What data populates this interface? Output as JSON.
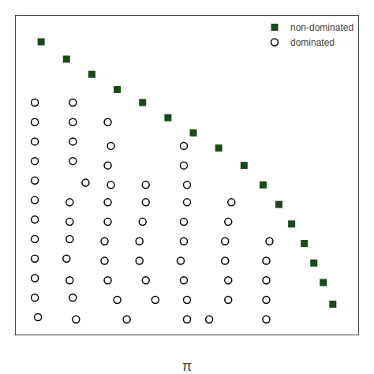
{
  "chart_data": {
    "type": "scatter",
    "xlabel": "π",
    "xlim": [
      -0.3,
      10.5
    ],
    "ylim": [
      0.3,
      15.0
    ],
    "xticks": [],
    "yticks": [],
    "tick_labels": false,
    "grid": false,
    "legend": "upper right",
    "series": [
      {
        "name": "non-dominated",
        "color": "#1a4a1a",
        "marker": "square",
        "x": [
          0.5,
          1.3,
          2.1,
          2.9,
          3.7,
          4.5,
          5.3,
          6.1,
          6.9,
          7.5,
          8.0,
          8.4,
          8.8,
          9.1,
          9.4,
          9.7
        ],
        "values": [
          13.8,
          13.0,
          12.3,
          11.6,
          11.0,
          10.3,
          9.6,
          8.9,
          8.1,
          7.2,
          6.3,
          5.4,
          4.5,
          3.6,
          2.7,
          1.7
        ]
      },
      {
        "name": "dominated",
        "color": "black",
        "marker": "circle-open",
        "x": [
          0.3,
          1.5,
          0.3,
          1.5,
          2.6,
          0.3,
          1.5,
          2.7,
          5.0,
          0.3,
          1.5,
          2.6,
          5.0,
          0.3,
          1.9,
          2.7,
          3.8,
          5.1,
          0.3,
          1.4,
          2.6,
          3.8,
          5.1,
          6.5,
          0.3,
          1.4,
          2.6,
          3.7,
          5.0,
          6.4,
          0.3,
          1.4,
          2.5,
          3.6,
          5.0,
          6.3,
          7.7,
          0.3,
          1.3,
          2.5,
          3.6,
          4.9,
          6.3,
          7.6,
          0.3,
          1.4,
          2.6,
          3.8,
          5.0,
          6.4,
          7.6,
          0.3,
          1.5,
          2.9,
          4.1,
          5.1,
          6.4,
          7.6,
          0.4,
          1.6,
          3.2,
          5.1,
          5.8,
          7.6
        ],
        "values": [
          11.0,
          11.0,
          10.1,
          10.1,
          10.1,
          9.2,
          9.2,
          9.0,
          9.0,
          8.3,
          8.3,
          8.1,
          8.1,
          7.4,
          7.3,
          7.2,
          7.2,
          7.2,
          6.5,
          6.4,
          6.4,
          6.4,
          6.4,
          6.4,
          5.6,
          5.5,
          5.5,
          5.5,
          5.5,
          5.5,
          4.7,
          4.7,
          4.6,
          4.6,
          4.6,
          4.6,
          4.6,
          3.8,
          3.8,
          3.7,
          3.7,
          3.7,
          3.7,
          3.7,
          2.9,
          2.8,
          2.8,
          2.8,
          2.8,
          2.8,
          2.8,
          2.0,
          2.0,
          1.9,
          1.9,
          1.9,
          1.9,
          1.9,
          1.1,
          1.0,
          1.0,
          1.0,
          1.0,
          1.0
        ]
      }
    ]
  }
}
